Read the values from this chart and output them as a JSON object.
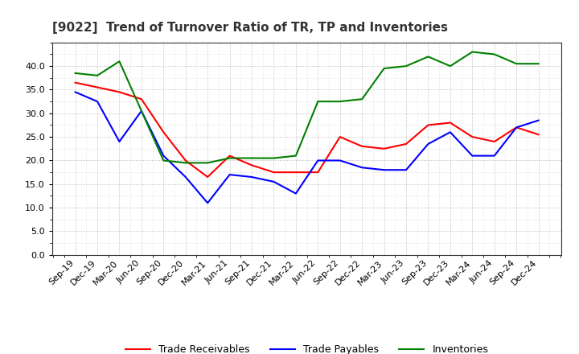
{
  "title": "[9022]  Trend of Turnover Ratio of TR, TP and Inventories",
  "x_labels": [
    "Sep-19",
    "Dec-19",
    "Mar-20",
    "Jun-20",
    "Sep-20",
    "Dec-20",
    "Mar-21",
    "Jun-21",
    "Sep-21",
    "Dec-21",
    "Mar-22",
    "Jun-22",
    "Sep-22",
    "Dec-22",
    "Mar-23",
    "Jun-23",
    "Sep-23",
    "Dec-23",
    "Mar-24",
    "Jun-24",
    "Sep-24",
    "Dec-24"
  ],
  "trade_receivables": [
    36.5,
    35.5,
    34.5,
    33.0,
    26.0,
    20.0,
    16.5,
    21.0,
    19.0,
    17.5,
    17.5,
    17.5,
    25.0,
    23.0,
    22.5,
    23.5,
    27.5,
    28.0,
    25.0,
    24.0,
    27.0,
    25.5
  ],
  "trade_payables": [
    34.5,
    32.5,
    24.0,
    30.5,
    21.0,
    16.5,
    11.0,
    17.0,
    16.5,
    15.5,
    13.0,
    20.0,
    20.0,
    18.5,
    18.0,
    18.0,
    23.5,
    26.0,
    21.0,
    21.0,
    27.0,
    28.5
  ],
  "inventories": [
    38.5,
    38.0,
    41.0,
    30.5,
    20.0,
    19.5,
    19.5,
    20.5,
    20.5,
    20.5,
    21.0,
    32.5,
    32.5,
    33.0,
    39.5,
    40.0,
    42.0,
    40.0,
    43.0,
    42.5,
    40.5,
    40.5
  ],
  "ylim": [
    0,
    45
  ],
  "yticks": [
    0.0,
    5.0,
    10.0,
    15.0,
    20.0,
    25.0,
    30.0,
    35.0,
    40.0
  ],
  "line_colors": {
    "trade_receivables": "#ff0000",
    "trade_payables": "#0000ff",
    "inventories": "#008000"
  },
  "legend_labels": [
    "Trade Receivables",
    "Trade Payables",
    "Inventories"
  ],
  "background_color": "#ffffff",
  "grid_color": "#999999",
  "title_color": "#333333",
  "title_fontsize": 11,
  "tick_fontsize": 8,
  "linewidth": 1.5
}
